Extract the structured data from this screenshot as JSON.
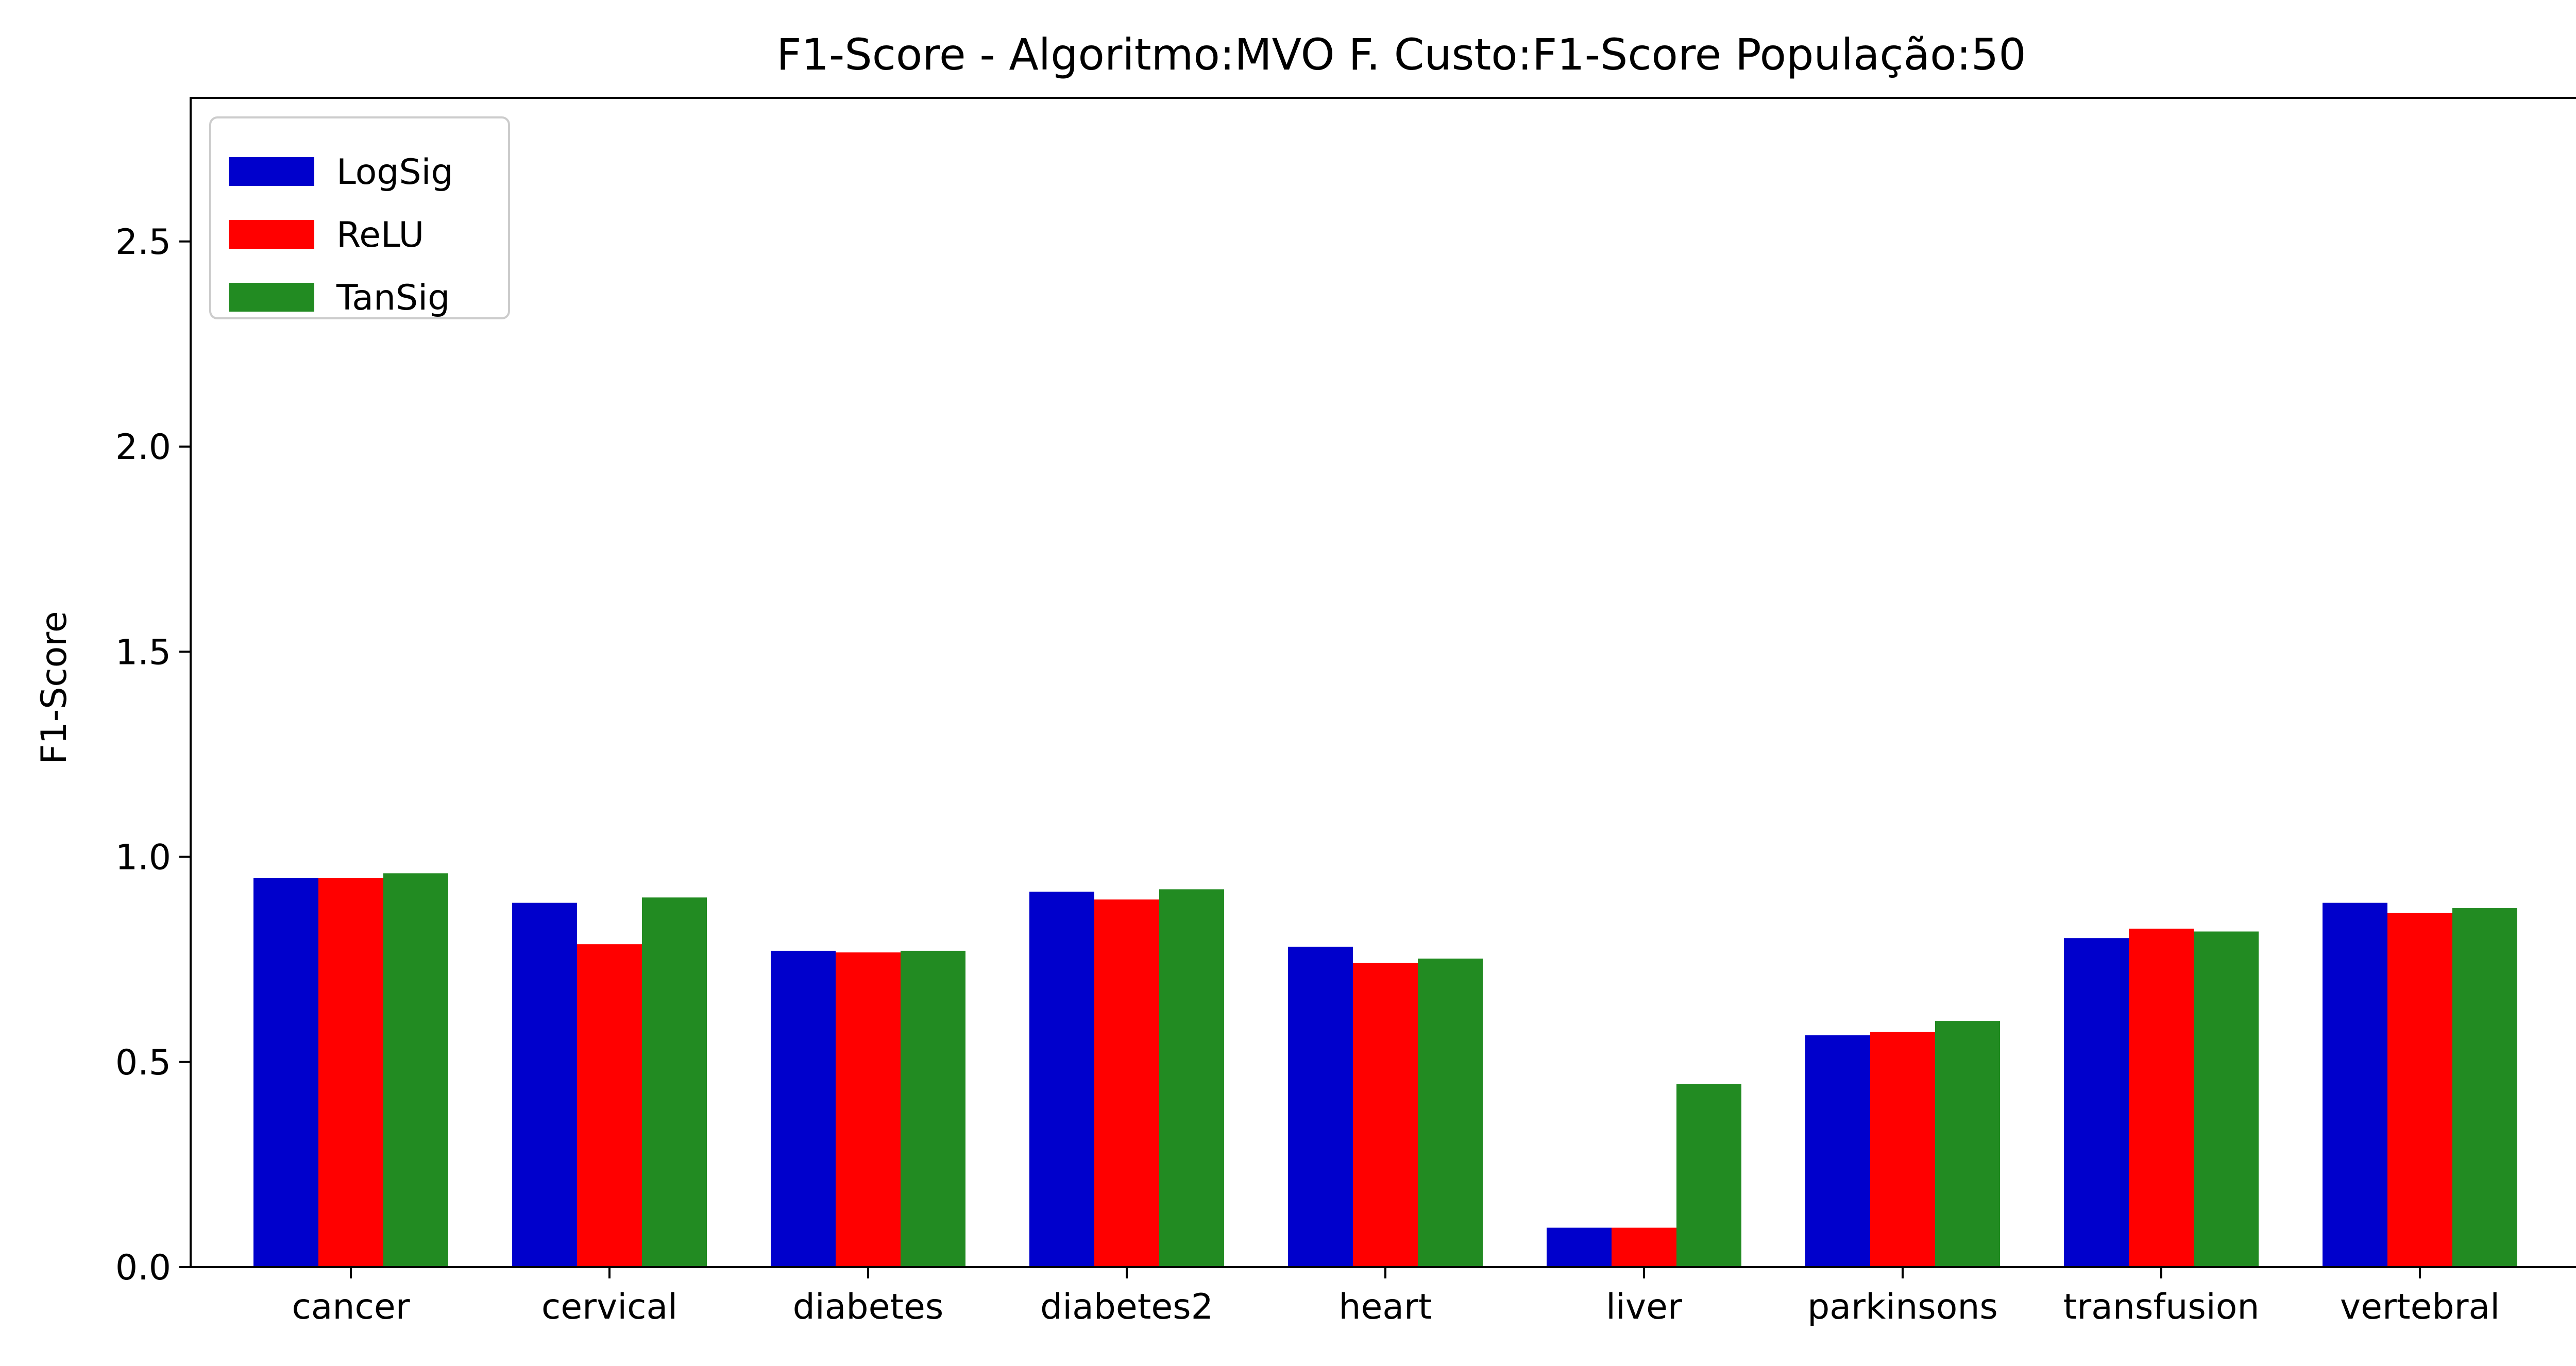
{
  "chart_data": {
    "type": "bar",
    "title": "F1-Score - Algoritmo:MVO F. Custo:F1-Score População:50",
    "xlabel": "",
    "ylabel": "F1-Score",
    "ylim": [
      0,
      2.85
    ],
    "yticks": [
      "0.0",
      "0.5",
      "1.0",
      "1.5",
      "2.0",
      "2.5"
    ],
    "grid": false,
    "legend_position": "top-left",
    "categories": [
      "cancer",
      "cervical",
      "diabetes",
      "diabetes2",
      "heart",
      "liver",
      "parkinsons",
      "transfusion",
      "vertebral"
    ],
    "series": [
      {
        "name": "LogSig",
        "color": "#0000cc",
        "values": [
          0.948,
          0.888,
          0.771,
          0.915,
          0.781,
          0.096,
          0.565,
          0.802,
          0.888
        ]
      },
      {
        "name": "ReLU",
        "color": "#ff0000",
        "values": [
          0.948,
          0.787,
          0.767,
          0.896,
          0.741,
          0.096,
          0.573,
          0.825,
          0.863
        ]
      },
      {
        "name": "TanSig",
        "color": "#228b22",
        "values": [
          0.96,
          0.901,
          0.771,
          0.921,
          0.752,
          0.446,
          0.6,
          0.818,
          0.875
        ]
      }
    ]
  }
}
